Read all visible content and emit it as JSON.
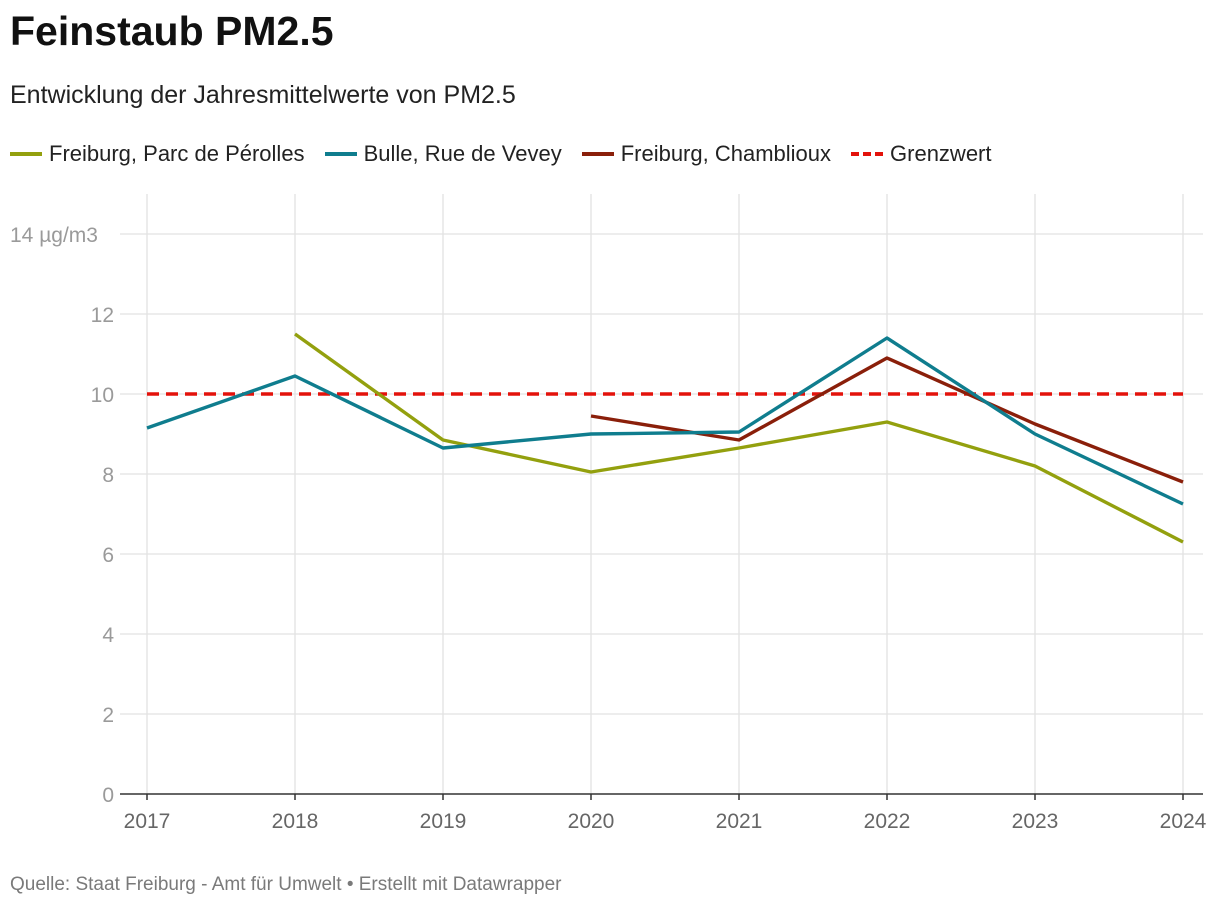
{
  "title": "Feinstaub PM2.5",
  "subtitle": "Entwicklung der Jahresmittelwerte von PM2.5",
  "source": "Quelle: Staat Freiburg - Amt für Umwelt • Erstellt mit Datawrapper",
  "legend": [
    {
      "label": "Freiburg, Parc de Pérolles",
      "color": "#93a00e",
      "dashed": false
    },
    {
      "label": "Bulle, Rue de Vevey",
      "color": "#0f7d8e",
      "dashed": false
    },
    {
      "label": "Freiburg, Chamblioux",
      "color": "#8a1f0a",
      "dashed": false
    },
    {
      "label": "Grenzwert",
      "color": "#e3120b",
      "dashed": true
    }
  ],
  "chart_data": {
    "type": "line",
    "title": "Feinstaub PM2.5",
    "subtitle": "Entwicklung der Jahresmittelwerte von PM2.5",
    "xlabel": "",
    "ylabel": "µg/m3",
    "x": [
      2017,
      2018,
      2019,
      2020,
      2021,
      2022,
      2023,
      2024
    ],
    "x_tick_labels": [
      "2017",
      "2018",
      "2019",
      "2020",
      "2021",
      "2022",
      "2023",
      "2024"
    ],
    "ylim": [
      0,
      14
    ],
    "y_ticks": [
      0,
      2,
      4,
      6,
      8,
      10,
      12,
      14
    ],
    "y_tick_labels": [
      "0",
      "2",
      "4",
      "6",
      "8",
      "10",
      "12",
      "14 µg/m3"
    ],
    "grid": true,
    "series": [
      {
        "name": "Freiburg, Parc de Pérolles",
        "color": "#93a00e",
        "values": [
          null,
          11.5,
          8.85,
          8.05,
          8.65,
          9.3,
          8.2,
          6.3
        ]
      },
      {
        "name": "Bulle, Rue de Vevey",
        "color": "#0f7d8e",
        "values": [
          9.15,
          10.45,
          8.65,
          9.0,
          9.05,
          11.4,
          9.0,
          7.25
        ]
      },
      {
        "name": "Freiburg, Chamblioux",
        "color": "#8a1f0a",
        "values": [
          null,
          null,
          null,
          9.45,
          8.85,
          10.9,
          9.25,
          7.8
        ]
      },
      {
        "name": "Grenzwert",
        "color": "#e3120b",
        "dashed": true,
        "values": [
          10,
          10,
          10,
          10,
          10,
          10,
          10,
          10
        ]
      }
    ]
  }
}
